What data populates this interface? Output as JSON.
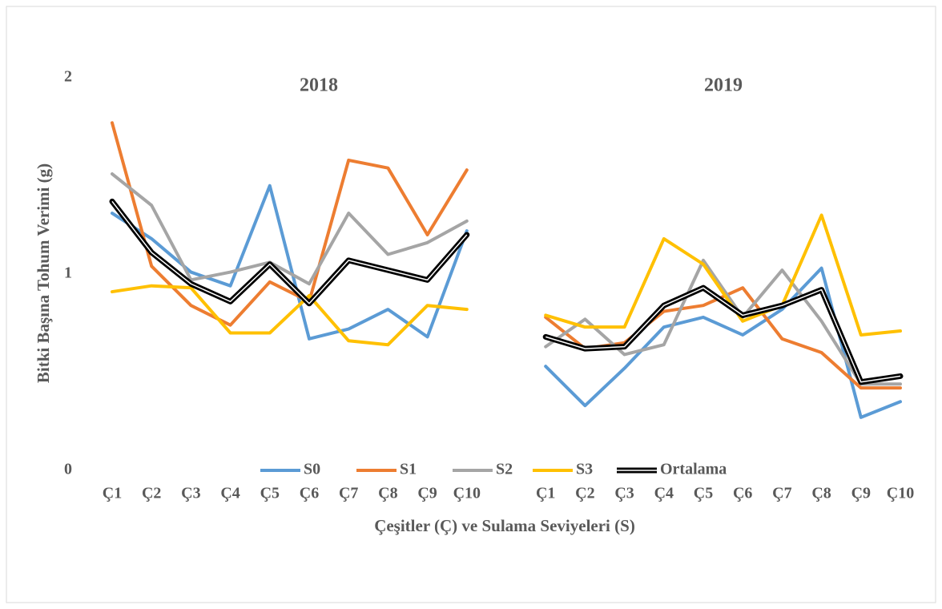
{
  "chart_data": {
    "type": "line",
    "y_label": "Bitki Başına Tohum Verimi (g)",
    "x_label": "Çeşitler (Ç) ve Sulama Seviyeleri (S)",
    "annotations": [
      "2018",
      "2019"
    ],
    "categories": [
      "Ç1",
      "Ç2",
      "Ç3",
      "Ç4",
      "Ç5",
      "Ç6",
      "Ç7",
      "Ç8",
      "Ç9",
      "Ç10",
      null,
      "Ç1",
      "Ç2",
      "Ç3",
      "Ç4",
      "Ç5",
      "Ç6",
      "Ç7",
      "Ç8",
      "Ç9",
      "Ç10"
    ],
    "ylim": [
      0,
      2
    ],
    "yticks": [
      0,
      1,
      2
    ],
    "grid": false,
    "legend": "bottom",
    "series": [
      {
        "name": "S0",
        "color": "#5b9bd5",
        "values": [
          1.31,
          1.18,
          1.01,
          0.94,
          1.45,
          0.67,
          0.72,
          0.82,
          0.68,
          1.22,
          null,
          0.53,
          0.33,
          0.52,
          0.73,
          0.78,
          0.69,
          0.82,
          1.03,
          0.27,
          0.35
        ]
      },
      {
        "name": "S1",
        "color": "#ed7d31",
        "values": [
          1.77,
          1.04,
          0.84,
          0.74,
          0.96,
          0.86,
          1.58,
          1.54,
          1.2,
          1.53,
          null,
          0.78,
          0.62,
          0.65,
          0.81,
          0.84,
          0.93,
          0.67,
          0.6,
          0.42,
          0.42
        ]
      },
      {
        "name": "S2",
        "color": "#a5a5a5",
        "values": [
          1.51,
          1.35,
          0.97,
          1.01,
          1.06,
          0.95,
          1.31,
          1.1,
          1.16,
          1.27,
          null,
          0.63,
          0.77,
          0.59,
          0.64,
          1.07,
          0.78,
          1.02,
          0.76,
          0.44,
          0.44
        ]
      },
      {
        "name": "S3",
        "color": "#ffc000",
        "values": [
          0.91,
          0.94,
          0.93,
          0.7,
          0.7,
          0.89,
          0.66,
          0.64,
          0.84,
          0.82,
          null,
          0.79,
          0.73,
          0.73,
          1.18,
          1.05,
          0.76,
          0.84,
          1.3,
          0.69,
          0.71
        ]
      },
      {
        "name": "Ortalama",
        "color": "#000000",
        "values": [
          1.37,
          1.11,
          0.95,
          0.86,
          1.05,
          0.85,
          1.07,
          1.02,
          0.97,
          1.2,
          null,
          0.68,
          0.62,
          0.63,
          0.84,
          0.93,
          0.79,
          0.84,
          0.92,
          0.45,
          0.48
        ]
      }
    ]
  }
}
